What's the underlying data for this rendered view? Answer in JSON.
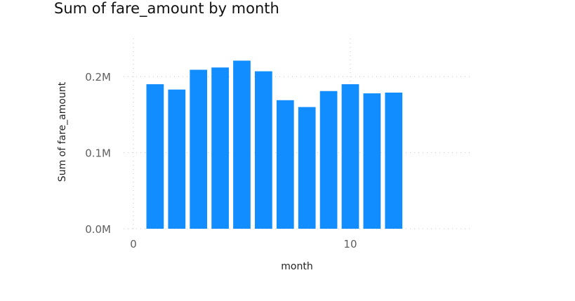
{
  "chart_data": {
    "type": "bar",
    "title": "Sum of fare_amount by month",
    "xlabel": "month",
    "ylabel": "Sum of fare_amount",
    "x": [
      1,
      2,
      3,
      4,
      5,
      6,
      7,
      8,
      9,
      10,
      11,
      12
    ],
    "values": [
      190000,
      183000,
      209000,
      212000,
      221000,
      207000,
      169000,
      160000,
      181000,
      190000,
      178000,
      179000
    ],
    "xlim": [
      0,
      15.6
    ],
    "ylim": [
      0,
      0.25
    ],
    "x_ticks": [
      0,
      10
    ],
    "x_tick_labels": [
      "0",
      "10"
    ],
    "y_ticks": [
      0,
      100000,
      200000
    ],
    "y_tick_labels": [
      "0.0M",
      "0.1M",
      "0.2M"
    ],
    "ylim_values": [
      0,
      250000
    ],
    "grid": true,
    "colors": {
      "bar": "#118DFF",
      "grid": "#C8C8C8",
      "tick_text": "#606060",
      "axis_title": "#252423"
    }
  }
}
